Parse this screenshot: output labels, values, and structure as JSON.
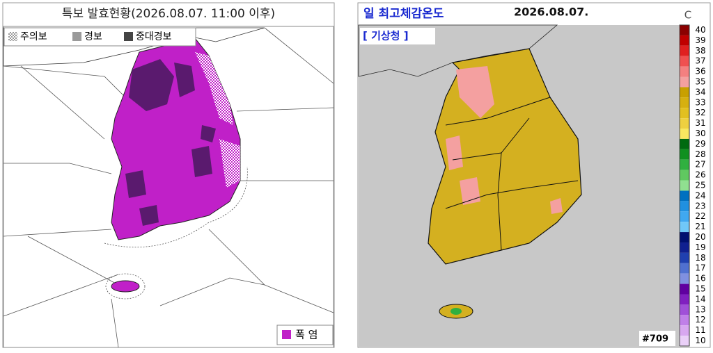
{
  "left_panel": {
    "title": "특보 발효현황(2026.08.07. 11:00 이후)",
    "legend": [
      "주의보",
      "경보",
      "중대경보"
    ],
    "hazard_legend": "폭 염"
  },
  "right_panel": {
    "title": "일 최고체감온도",
    "date": "2026.08.07.",
    "source": "[ 기상청 ]",
    "unit": "C",
    "image_id": "#709",
    "scale": [
      {
        "value": 40,
        "color": "#8b0000"
      },
      {
        "value": 39,
        "color": "#c00000"
      },
      {
        "value": 38,
        "color": "#e02020"
      },
      {
        "value": 37,
        "color": "#f05050"
      },
      {
        "value": 36,
        "color": "#f48080"
      },
      {
        "value": 35,
        "color": "#f4a0a0"
      },
      {
        "value": 34,
        "color": "#c8a000"
      },
      {
        "value": 33,
        "color": "#d6b010"
      },
      {
        "value": 32,
        "color": "#e2c020"
      },
      {
        "value": 31,
        "color": "#eed040"
      },
      {
        "value": 30,
        "color": "#f8e860"
      },
      {
        "value": 29,
        "color": "#006a10"
      },
      {
        "value": 28,
        "color": "#109020"
      },
      {
        "value": 27,
        "color": "#30b040"
      },
      {
        "value": 26,
        "color": "#60c860"
      },
      {
        "value": 25,
        "color": "#90e090"
      },
      {
        "value": 24,
        "color": "#0070c0"
      },
      {
        "value": 23,
        "color": "#2090e0"
      },
      {
        "value": 22,
        "color": "#40a8f0"
      },
      {
        "value": 21,
        "color": "#70c8f8"
      },
      {
        "value": 20,
        "color": "#001070"
      },
      {
        "value": 19,
        "color": "#102090"
      },
      {
        "value": 18,
        "color": "#2040b0"
      },
      {
        "value": 17,
        "color": "#5070d0"
      },
      {
        "value": 16,
        "color": "#8090e0"
      },
      {
        "value": 15,
        "color": "#6000a0"
      },
      {
        "value": 14,
        "color": "#8020c0"
      },
      {
        "value": 13,
        "color": "#a050d8"
      },
      {
        "value": 12,
        "color": "#c080e8"
      },
      {
        "value": 11,
        "color": "#d8a8f0"
      },
      {
        "value": 10,
        "color": "#ead0f8"
      }
    ]
  }
}
